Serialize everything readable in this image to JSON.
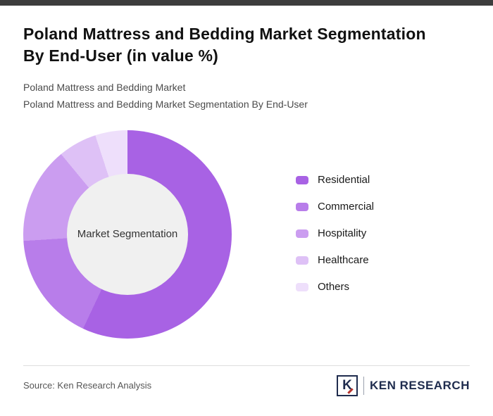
{
  "page": {
    "title_line1": "Poland Mattress and Bedding Market Segmentation",
    "title_line2": "By End-User (in value %)",
    "subtitle_line1": "Poland Mattress and Bedding Market",
    "subtitle_line2": "Poland Mattress and Bedding Market Segmentation By End-User"
  },
  "chart_data": {
    "type": "pie",
    "variant": "donut",
    "title": "Poland Mattress and Bedding Market Segmentation By End-User (in value %)",
    "center_label": "Market Segmentation",
    "categories": [
      "Residential",
      "Commercial",
      "Hospitality",
      "Healthcare",
      "Others"
    ],
    "values": [
      57,
      17,
      15,
      6,
      5
    ],
    "colors": [
      "#a862e4",
      "#b87dea",
      "#cb9df0",
      "#dec1f6",
      "#eedffb"
    ],
    "hole_color": "#f0f0f0",
    "legend_position": "right",
    "start_angle_deg": 0,
    "direction": "clockwise"
  },
  "footer": {
    "source": "Source: Ken Research Analysis",
    "logo_mark": "K",
    "logo_text": "KEN RESEARCH"
  },
  "theme": {
    "top_bar_color": "#3d3d3d",
    "divider_color": "#dddddd"
  }
}
